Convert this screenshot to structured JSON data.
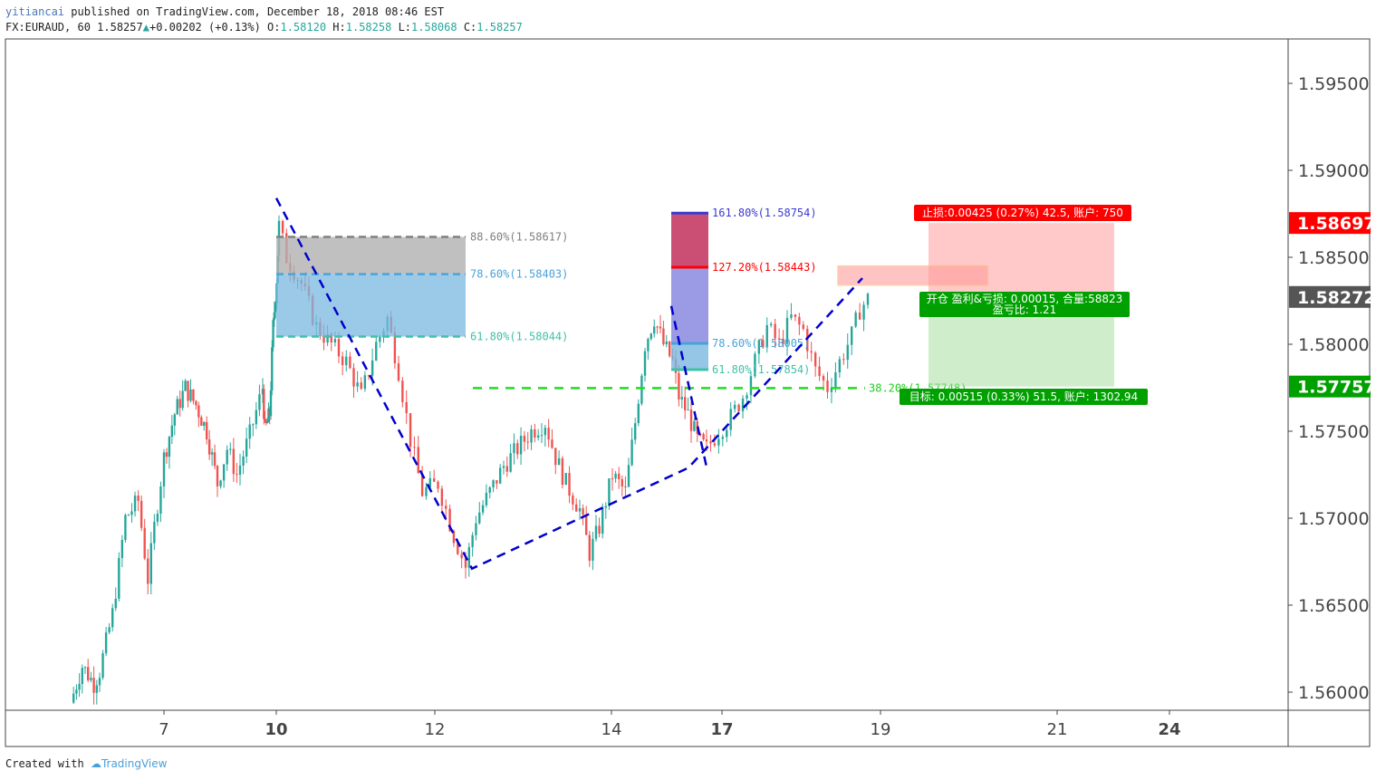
{
  "header": {
    "author": "yitiancai",
    "published_text": "published on TradingView.com, December 18, 2018 08:46 EST",
    "symbol": "FX:EURAUD, 60",
    "last": "1.58257",
    "change": "+0.00202 (+0.13%)",
    "o_label": "O:",
    "o_value": "1.58120",
    "h_label": "H:",
    "h_value": "1.58258",
    "l_label": "L:",
    "l_value": "1.58068",
    "c_label": "C:",
    "c_value": "1.58257"
  },
  "footer": {
    "created_with": "Created with",
    "brand": "TradingView"
  },
  "colors": {
    "up": "#26a69a",
    "down": "#ef5350",
    "trend": "#0000cc",
    "fib_gray": "#808080",
    "fib_blue": "#4aa3d8",
    "fib_teal": "#3fc1a8",
    "stop": "#ff0000",
    "target": "#00a000",
    "last": "#555555"
  },
  "chart_data": {
    "type": "candlestick",
    "timeframe": "60",
    "ylim": [
      1.5588,
      1.5986
    ],
    "y_ticks": [
      "1.59500",
      "1.59000",
      "1.58500",
      "1.58000",
      "1.57500",
      "1.57000",
      "1.56500",
      "1.56000"
    ],
    "x_ticks": [
      {
        "label": "7",
        "bold": false
      },
      {
        "label": "10",
        "bold": true
      },
      {
        "label": "12",
        "bold": false
      },
      {
        "label": "14",
        "bold": false
      },
      {
        "label": "17",
        "bold": true
      },
      {
        "label": "19",
        "bold": false
      },
      {
        "label": "21",
        "bold": false
      },
      {
        "label": "24",
        "bold": true
      }
    ],
    "price_path": [
      [
        0,
        1.5594
      ],
      [
        4,
        1.5615
      ],
      [
        8,
        1.5605
      ],
      [
        10,
        1.5612
      ],
      [
        14,
        1.5645
      ],
      [
        18,
        1.57
      ],
      [
        22,
        1.571
      ],
      [
        25,
        1.5665
      ],
      [
        27,
        1.5695
      ],
      [
        30,
        1.5735
      ],
      [
        34,
        1.576
      ],
      [
        38,
        1.5775
      ],
      [
        42,
        1.5765
      ],
      [
        46,
        1.575
      ],
      [
        50,
        1.572
      ],
      [
        53,
        1.574
      ],
      [
        56,
        1.5725
      ],
      [
        60,
        1.5748
      ],
      [
        64,
        1.5775
      ],
      [
        66,
        1.575
      ],
      [
        70,
        1.576
      ],
      [
        73,
        1.581
      ],
      [
        76,
        1.5838
      ],
      [
        78,
        1.5868
      ],
      [
        80,
        1.585
      ],
      [
        84,
        1.5835
      ],
      [
        88,
        1.581
      ],
      [
        92,
        1.58
      ],
      [
        96,
        1.579
      ],
      [
        100,
        1.577
      ],
      [
        104,
        1.58
      ],
      [
        107,
        1.5815
      ],
      [
        110,
        1.5785
      ],
      [
        113,
        1.5745
      ],
      [
        116,
        1.5715
      ],
      [
        120,
        1.572
      ],
      [
        124,
        1.569
      ],
      [
        127,
        1.5672
      ],
      [
        130,
        1.57
      ],
      [
        134,
        1.5715
      ],
      [
        138,
        1.573
      ],
      [
        142,
        1.574
      ],
      [
        146,
        1.575
      ],
      [
        150,
        1.5755
      ],
      [
        153,
        1.5735
      ],
      [
        156,
        1.572
      ],
      [
        160,
        1.5705
      ],
      [
        163,
        1.568
      ],
      [
        166,
        1.5695
      ],
      [
        170,
        1.5725
      ],
      [
        174,
        1.5715
      ],
      [
        177,
        1.5755
      ],
      [
        180,
        1.58
      ],
      [
        183,
        1.5815
      ],
      [
        186,
        1.58
      ],
      [
        189,
        1.579
      ],
      [
        191,
        1.577
      ],
      [
        194,
        1.576
      ],
      [
        197,
        1.5745
      ],
      [
        200,
        1.574
      ],
      [
        203,
        1.575
      ],
      [
        206,
        1.5758
      ],
      [
        209,
        1.577
      ],
      [
        212,
        1.579
      ],
      [
        215,
        1.581
      ],
      [
        218,
        1.58
      ],
      [
        221,
        1.5815
      ],
      [
        224,
        1.5808
      ],
      [
        227,
        1.5785
      ],
      [
        230,
        1.5775
      ],
      [
        233,
        1.579
      ],
      [
        236,
        1.5805
      ],
      [
        238,
        1.582
      ],
      [
        240,
        1.5826
      ]
    ],
    "trend_line": {
      "points": [
        {
          "t": "10",
          "price": 1.5884
        },
        {
          "t": "12",
          "price": 1.5671
        },
        {
          "t": "17",
          "price": 1.5729
        },
        {
          "t": "19",
          "price": 1.5838
        }
      ],
      "color": "#0000cc",
      "style": "dashed"
    },
    "fib_retracement": [
      {
        "label": "88.60%(1.58617)",
        "price": 1.58617
      },
      {
        "label": "78.60%(1.58403)",
        "price": 1.58403
      },
      {
        "label": "61.80%(1.58044)",
        "price": 1.58044
      }
    ],
    "fib_extension": [
      {
        "label": "161.80%(1.58754)",
        "price": 1.58754
      },
      {
        "label": "127.20%(1.58443)",
        "price": 1.58443
      },
      {
        "label": "78.60%(1.58005)",
        "price": 1.58005
      },
      {
        "label": "61.80%(1.57854)",
        "price": 1.57854
      }
    ],
    "green_level": {
      "label": "38.20%(1.57748)",
      "price": 1.57748
    },
    "position": {
      "entry": 1.58272,
      "stop": 1.58697,
      "target": 1.57757,
      "entry_box_top": 1.5845,
      "entry_box_bottom": 1.5834,
      "stop_label": "止损:0.00425 (0.27%) 42.5, 账户: 750",
      "entry_label_1": "开仓 盈利&亏损: 0.00015, 合量:58823",
      "entry_label_2": "盈亏比: 1.21",
      "target_label": "目标: 0.00515 (0.33%) 51.5, 账户: 1302.94"
    },
    "price_tags": [
      {
        "label": "1.58697",
        "kind": "stop"
      },
      {
        "label": "1.58272",
        "kind": "last"
      },
      {
        "label": "1.57757",
        "kind": "target"
      }
    ]
  }
}
